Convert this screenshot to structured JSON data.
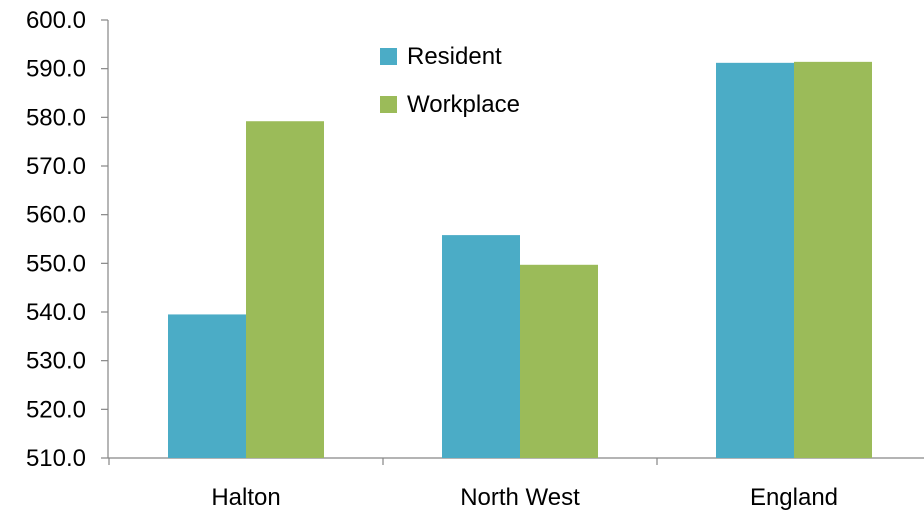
{
  "chart_data": {
    "type": "bar",
    "categories": [
      "Halton",
      "North West",
      "England"
    ],
    "series": [
      {
        "name": "Resident",
        "color": "#4BACC6",
        "values": [
          539.5,
          555.8,
          591.2
        ]
      },
      {
        "name": "Workplace",
        "color": "#9BBB59",
        "values": [
          579.2,
          549.7,
          591.4
        ]
      }
    ],
    "ylim": [
      510,
      600
    ],
    "yticks": [
      "510.0",
      "520.0",
      "530.0",
      "540.0",
      "550.0",
      "560.0",
      "570.0",
      "580.0",
      "590.0",
      "600.0"
    ],
    "grid": false,
    "legend_position": "top-center",
    "title": "",
    "xlabel": "",
    "ylabel": ""
  }
}
